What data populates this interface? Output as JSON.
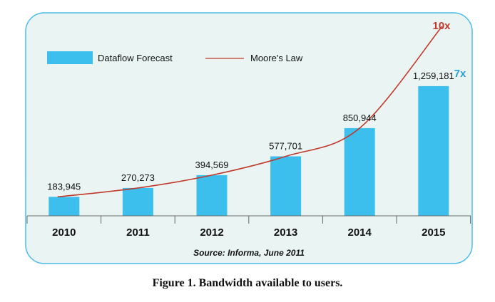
{
  "colors": {
    "bar": "#3dbfed",
    "line": "#c0392b",
    "panel_bg": "#eaf5f3",
    "panel_border": "#4bbbe8",
    "annotation_line": "#c0392b",
    "annotation_bar": "#2a9fd4"
  },
  "chart_data": {
    "type": "bar",
    "categories": [
      "2010",
      "2011",
      "2012",
      "2013",
      "2014",
      "2015"
    ],
    "series": [
      {
        "name": "Dataflow Forecast",
        "type": "bar",
        "values": [
          183945,
          270273,
          394569,
          577701,
          850944,
          1259181
        ]
      },
      {
        "name": "Moore's Law",
        "type": "line",
        "values": [
          183945,
          270273,
          394569,
          577701,
          850944,
          1839450
        ]
      }
    ],
    "data_labels": [
      "183,945",
      "270,273",
      "394,569",
      "577,701",
      "850,944",
      "1,259,181"
    ],
    "ylim": [
      0,
      1839450
    ],
    "legend": "top-left",
    "grid": false,
    "annotations": [
      {
        "text": "10x",
        "series": "Moore's Law"
      },
      {
        "text": "7x",
        "series": "Dataflow Forecast"
      }
    ],
    "source": "Source: Informa, June  2011"
  },
  "caption": "Figure 1. Bandwidth available to users."
}
